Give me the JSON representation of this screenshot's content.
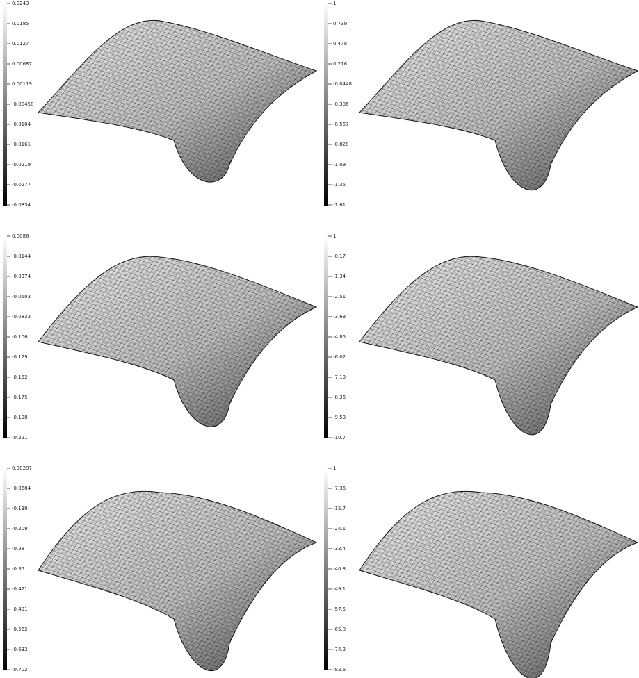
{
  "panels": [
    {
      "colorbar_labels": [
        "0.0243",
        "0.0185",
        "0.0127",
        "0.00687",
        "0.00119",
        "-0.00458",
        "-0.0104",
        "-0.0161",
        "-0.0219",
        "-0.0277",
        "-0.0334"
      ]
    },
    {
      "colorbar_labels": [
        "1",
        "0.739",
        "0.478",
        "0.216",
        "-0.0448",
        "-0.306",
        "-0.567",
        "-0.828",
        "-1.09",
        "-1.35",
        "-1.61"
      ]
    },
    {
      "colorbar_labels": [
        "0.0086",
        "-0.0144",
        "-0.0374",
        "-0.0603",
        "-0.0833",
        "-0.106",
        "-0.129",
        "-0.152",
        "-0.175",
        "-0.198",
        "-0.221"
      ]
    },
    {
      "colorbar_labels": [
        "1",
        "-0.17",
        "-1.34",
        "-2.51",
        "-3.68",
        "-4.85",
        "-6.02",
        "-7.19",
        "-8.36",
        "-9.53",
        "-10.7"
      ]
    },
    {
      "colorbar_labels": [
        "0.00207",
        "-0.0684",
        "-0.139",
        "-0.209",
        "-0.28",
        "-0.35",
        "-0.421",
        "-0.491",
        "-0.562",
        "-0.632",
        "-0.702"
      ]
    },
    {
      "colorbar_labels": [
        "1",
        "-7.36",
        "-15.7",
        "-24.1",
        "-32.4",
        "-40.8",
        "-49.1",
        "-57.5",
        "-65.8",
        "-74.2",
        "-82.6"
      ]
    }
  ]
}
